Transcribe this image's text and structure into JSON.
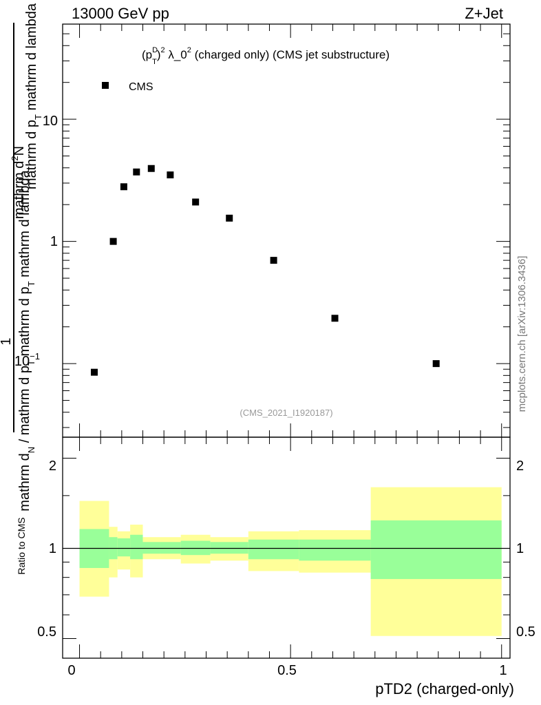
{
  "header": {
    "left": "13000 GeV pp",
    "right": "Z+Jet"
  },
  "plot": {
    "title_parts": {
      "p": "(p",
      "sup_D": "D",
      "sub_T": "T",
      "close": ")",
      "sup_2": "2",
      "lambda": " λ_0",
      "sup_2b": "2",
      "rest": " (charged only) (CMS jet substructure)"
    },
    "ylabel_top": "mathrm d²N",
    "ylabel_top_parts": {
      "a": "mathrm d",
      "sup": "2",
      "b": "N"
    },
    "ylabel_mid_parts": {
      "a": "mathrm d p",
      "sub": "T",
      "b": " mathrm d lambda"
    },
    "ylabel_one": "1",
    "ylabel_bottom_parts": {
      "a": "mathrm d",
      "sub": "N",
      "b": " / mathrm d p",
      "sub2": "T",
      "c": " mathrm d p",
      "sub3": "T",
      "d": " mathrm d lambda"
    },
    "analysis_id": "(CMS_2021_I1920187)",
    "watermark": "mcplots.cern.ch [arXiv:1306.3436]",
    "legend_label": "CMS",
    "ytick_labels": {
      "t1": "10",
      "t1_exp": "−1",
      "t2": "1",
      "t3": "10"
    },
    "ratio_ylabel": "Ratio to CMS",
    "ratio_ticks": [
      "2",
      "1",
      "0.5"
    ],
    "xtick_labels": [
      "0",
      "0.5",
      "1"
    ],
    "xlabel": "pTD2 (charged-only)"
  },
  "colors": {
    "marker": "#000000",
    "band_inner": "#99ff99",
    "band_outer": "#ffff99"
  },
  "chart_data": [
    {
      "type": "scatter",
      "title": "(p_T^D)^2 λ_0^2 (charged only) (CMS jet substructure)",
      "xlabel": "pTD2 (charged-only)",
      "ylabel": "1/(dN/dpT dλ) · d²N/(dpT dλ)",
      "yscale": "log",
      "xlim": [
        -0.04,
        1.02
      ],
      "ylim": [
        0.025,
        60
      ],
      "series": [
        {
          "name": "CMS",
          "x": [
            0.035,
            0.08,
            0.105,
            0.135,
            0.17,
            0.215,
            0.275,
            0.355,
            0.46,
            0.605,
            0.845
          ],
          "y": [
            0.085,
            1.0,
            2.8,
            3.7,
            3.95,
            3.5,
            2.1,
            1.55,
            0.7,
            0.235,
            0.1
          ]
        }
      ]
    },
    {
      "type": "area",
      "title": "Ratio to CMS",
      "ylabel": "Ratio to CMS",
      "yscale": "log",
      "ylim": [
        0.43,
        2.35
      ],
      "reference": 1.0,
      "bins": [
        0.0,
        0.07,
        0.09,
        0.12,
        0.15,
        0.19,
        0.24,
        0.31,
        0.4,
        0.52,
        0.69,
        1.0
      ],
      "inner_low": [
        0.86,
        0.92,
        0.94,
        0.92,
        0.96,
        0.96,
        0.95,
        0.96,
        0.92,
        0.91,
        0.79
      ],
      "inner_high": [
        1.16,
        1.09,
        1.08,
        1.11,
        1.05,
        1.05,
        1.06,
        1.05,
        1.07,
        1.07,
        1.24
      ],
      "outer_low": [
        0.69,
        0.8,
        0.85,
        0.8,
        0.92,
        0.92,
        0.89,
        0.91,
        0.84,
        0.83,
        0.51
      ],
      "outer_high": [
        1.44,
        1.18,
        1.14,
        1.2,
        1.09,
        1.09,
        1.11,
        1.09,
        1.14,
        1.15,
        1.6
      ]
    }
  ]
}
